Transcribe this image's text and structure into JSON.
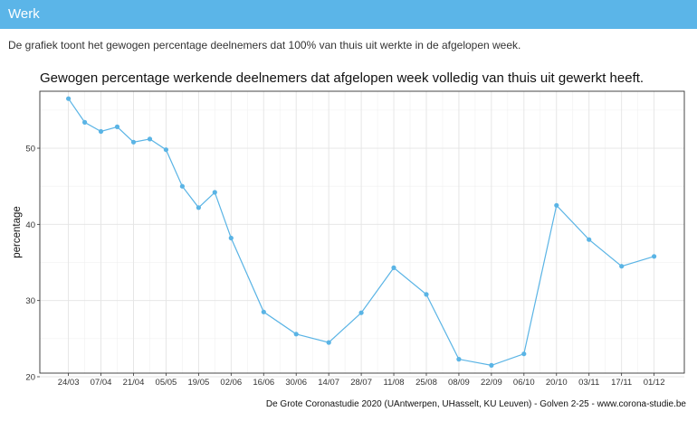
{
  "panel": {
    "title": "Werk"
  },
  "description": "De grafiek toont het gewogen percentage deelnemers dat 100% van thuis uit werkte in de afgelopen week.",
  "chart_data": {
    "type": "line",
    "title": "Gewogen percentage werkende deelnemers dat afgelopen week volledig van thuis uit gewerkt heeft.",
    "xlabel": "",
    "ylabel": "percentage",
    "x_ticks": [
      "24/03",
      "07/04",
      "21/04",
      "05/05",
      "19/05",
      "02/06",
      "16/06",
      "30/06",
      "14/07",
      "28/07",
      "11/08",
      "25/08",
      "08/09",
      "22/09",
      "06/10",
      "20/10",
      "03/11",
      "17/11",
      "01/12"
    ],
    "y_ticks": [
      20,
      30,
      40,
      50
    ],
    "ylim": [
      20,
      57
    ],
    "grid": true,
    "line_color": "#5ab4e5",
    "caption": "De Grote Coronastudie 2020 (UAntwerpen, UHasselt, KU Leuven) - Golven 2-25 - www.corona-studie.be",
    "series": [
      {
        "points": [
          {
            "x": "24/03",
            "y": 56.5
          },
          {
            "x": "31/03",
            "y": 53.4
          },
          {
            "x": "07/04",
            "y": 52.2
          },
          {
            "x": "14/04",
            "y": 52.8
          },
          {
            "x": "21/04",
            "y": 50.8
          },
          {
            "x": "28/04",
            "y": 51.2
          },
          {
            "x": "05/05",
            "y": 49.8
          },
          {
            "x": "12/05",
            "y": 45.0
          },
          {
            "x": "19/05",
            "y": 42.2
          },
          {
            "x": "26/05",
            "y": 44.2
          },
          {
            "x": "02/06",
            "y": 38.2
          },
          {
            "x": "16/06",
            "y": 28.5
          },
          {
            "x": "30/06",
            "y": 25.6
          },
          {
            "x": "14/07",
            "y": 24.5
          },
          {
            "x": "28/07",
            "y": 28.4
          },
          {
            "x": "11/08",
            "y": 34.3
          },
          {
            "x": "25/08",
            "y": 30.8
          },
          {
            "x": "08/09",
            "y": 22.3
          },
          {
            "x": "22/09",
            "y": 21.5
          },
          {
            "x": "06/10",
            "y": 23.0
          },
          {
            "x": "20/10",
            "y": 42.5
          },
          {
            "x": "03/11",
            "y": 38.0
          },
          {
            "x": "17/11",
            "y": 34.5
          },
          {
            "x": "01/12",
            "y": 35.8
          }
        ]
      }
    ]
  }
}
